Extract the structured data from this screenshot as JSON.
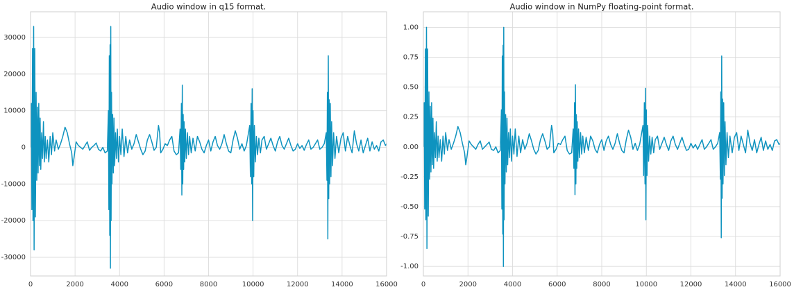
{
  "chart_data": [
    {
      "type": "line",
      "title": "Audio window in q15 format.",
      "color": "#0e93bf",
      "grid": true,
      "xlim": [
        0,
        16000
      ],
      "xticks": [
        0,
        2000,
        4000,
        6000,
        8000,
        10000,
        12000,
        14000,
        16000
      ],
      "ylim": [
        -35100,
        37000
      ],
      "yticks": [
        -30000,
        -20000,
        -10000,
        0,
        10000,
        20000,
        30000
      ],
      "x": [
        0,
        40,
        60,
        90,
        110,
        140,
        160,
        190,
        220,
        250,
        280,
        310,
        340,
        370,
        400,
        430,
        460,
        500,
        540,
        580,
        620,
        660,
        700,
        760,
        820,
        880,
        940,
        1000,
        1080,
        1150,
        1250,
        1350,
        1450,
        1550,
        1650,
        1750,
        1850,
        1900,
        1950,
        2050,
        2150,
        2250,
        2350,
        2450,
        2550,
        2650,
        2750,
        2850,
        2950,
        3050,
        3150,
        3250,
        3350,
        3450,
        3500,
        3520,
        3540,
        3560,
        3575,
        3590,
        3605,
        3620,
        3640,
        3660,
        3690,
        3720,
        3750,
        3780,
        3820,
        3860,
        3900,
        3950,
        4000,
        4060,
        4120,
        4200,
        4280,
        4360,
        4450,
        4550,
        4650,
        4750,
        4850,
        4950,
        5050,
        5150,
        5250,
        5350,
        5450,
        5550,
        5650,
        5750,
        5800,
        5850,
        5950,
        6050,
        6150,
        6250,
        6350,
        6450,
        6550,
        6650,
        6720,
        6750,
        6780,
        6800,
        6820,
        6840,
        6860,
        6880,
        6900,
        6930,
        6960,
        7000,
        7050,
        7100,
        7150,
        7220,
        7300,
        7400,
        7500,
        7600,
        7700,
        7800,
        7900,
        8000,
        8100,
        8200,
        8300,
        8400,
        8500,
        8600,
        8700,
        8800,
        8900,
        9000,
        9100,
        9200,
        9300,
        9400,
        9500,
        9600,
        9700,
        9850,
        9880,
        9910,
        9940,
        9960,
        9980,
        10000,
        10030,
        10060,
        10100,
        10150,
        10200,
        10260,
        10330,
        10400,
        10500,
        10600,
        10700,
        10800,
        10900,
        11000,
        11100,
        11200,
        11300,
        11400,
        11500,
        11600,
        11700,
        11800,
        11900,
        12000,
        12100,
        12200,
        12300,
        12400,
        12500,
        12600,
        12700,
        12800,
        12900,
        13000,
        13100,
        13200,
        13290,
        13320,
        13340,
        13360,
        13380,
        13400,
        13420,
        13440,
        13470,
        13500,
        13530,
        13570,
        13620,
        13680,
        13750,
        13850,
        13950,
        14050,
        14150,
        14250,
        14350,
        14450,
        14550,
        14650,
        14750,
        14850,
        14950,
        15050,
        15150,
        15250,
        15350,
        15450,
        15550,
        15650,
        15750,
        15850,
        15950,
        16000
      ],
      "values": [
        0,
        12000,
        -17000,
        27000,
        -20000,
        33000,
        -28000,
        27000,
        -19000,
        15000,
        -9000,
        11000,
        -7000,
        12000,
        -5000,
        8000,
        -6000,
        4000,
        -3000,
        7000,
        -4000,
        3000,
        -3000,
        2000,
        -4000,
        3000,
        -2000,
        4000,
        -1000,
        2000,
        -500,
        1000,
        3000,
        5500,
        4000,
        1000,
        -1500,
        -5000,
        -3000,
        1500,
        500,
        0,
        -500,
        500,
        1500,
        -800,
        0,
        500,
        1200,
        -500,
        -1000,
        0,
        -1500,
        -1000,
        10000,
        -17000,
        25000,
        -24000,
        28000,
        -33000,
        33000,
        -20000,
        15000,
        -10000,
        9000,
        -7000,
        8000,
        -5000,
        4000,
        -3000,
        5000,
        -4000,
        3000,
        -2000,
        5000,
        -2500,
        3000,
        -1500,
        2000,
        -500,
        1000,
        3500,
        1500,
        -500,
        -2000,
        -1000,
        2000,
        3500,
        1500,
        -800,
        0,
        6000,
        4000,
        -1500,
        -500,
        1000,
        500,
        2000,
        3000,
        -1000,
        -2000,
        -1500,
        5000,
        -6000,
        12000,
        -13000,
        17000,
        -10000,
        9000,
        -6000,
        7000,
        -4000,
        5000,
        -3000,
        4000,
        -2000,
        3000,
        -1500,
        2500,
        -1000,
        3000,
        1500,
        -500,
        -1500,
        500,
        2000,
        -1000,
        1500,
        3000,
        500,
        -500,
        1000,
        3500,
        1000,
        -1000,
        -1500,
        2000,
        4500,
        2500,
        -500,
        1000,
        -1000,
        500,
        6000,
        -8000,
        12000,
        -10000,
        16000,
        -20000,
        10000,
        -8000,
        6000,
        -4000,
        3000,
        -2000,
        2500,
        -1500,
        2000,
        3000,
        -500,
        1000,
        2500,
        500,
        -1000,
        1500,
        3000,
        500,
        -500,
        1000,
        2500,
        500,
        -1000,
        -500,
        1000,
        -300,
        500,
        -800,
        800,
        2000,
        -500,
        0,
        1000,
        2000,
        -500,
        0,
        1000,
        4000,
        -9000,
        15000,
        -25000,
        25000,
        -14000,
        13000,
        -10000,
        12000,
        -8000,
        7000,
        -5000,
        4000,
        -3000,
        3000,
        -1500,
        2500,
        4000,
        -1000,
        3000,
        500,
        -1500,
        4500,
        1000,
        -1000,
        2000,
        -1500,
        500,
        2500,
        -1000,
        1500,
        -500,
        500,
        -1000,
        1500,
        2000,
        500,
        1000
      ]
    },
    {
      "type": "line",
      "title": "Audio window in NumPy floating-point format.",
      "color": "#0e93bf",
      "grid": true,
      "xlim": [
        0,
        16000
      ],
      "xticks": [
        0,
        2000,
        4000,
        6000,
        8000,
        10000,
        12000,
        14000,
        16000
      ],
      "ylim": [
        -1.08,
        1.13
      ],
      "yticks": [
        {
          "value": -1,
          "label": "-1.00"
        },
        {
          "value": -0.75,
          "label": "-0.75"
        },
        {
          "value": -0.5,
          "label": "-0.50"
        },
        {
          "value": -0.25,
          "label": "-0.25"
        },
        {
          "value": 0,
          "label": "0.00"
        },
        {
          "value": 0.25,
          "label": "0.25"
        },
        {
          "value": 0.5,
          "label": "0.50"
        },
        {
          "value": 0.75,
          "label": "0.75"
        },
        {
          "value": 1,
          "label": "1.00"
        }
      ],
      "x": [
        0,
        40,
        60,
        90,
        110,
        140,
        160,
        190,
        220,
        250,
        280,
        310,
        340,
        370,
        400,
        430,
        460,
        500,
        540,
        580,
        620,
        660,
        700,
        760,
        820,
        880,
        940,
        1000,
        1080,
        1150,
        1250,
        1350,
        1450,
        1550,
        1650,
        1750,
        1850,
        1900,
        1950,
        2050,
        2150,
        2250,
        2350,
        2450,
        2550,
        2650,
        2750,
        2850,
        2950,
        3050,
        3150,
        3250,
        3350,
        3450,
        3500,
        3520,
        3540,
        3560,
        3575,
        3590,
        3605,
        3620,
        3640,
        3660,
        3690,
        3720,
        3750,
        3780,
        3820,
        3860,
        3900,
        3950,
        4000,
        4060,
        4120,
        4200,
        4280,
        4360,
        4450,
        4550,
        4650,
        4750,
        4850,
        4950,
        5050,
        5150,
        5250,
        5350,
        5450,
        5550,
        5650,
        5750,
        5800,
        5850,
        5950,
        6050,
        6150,
        6250,
        6350,
        6450,
        6550,
        6650,
        6720,
        6750,
        6780,
        6800,
        6820,
        6840,
        6860,
        6880,
        6900,
        6930,
        6960,
        7000,
        7050,
        7100,
        7150,
        7220,
        7300,
        7400,
        7500,
        7600,
        7700,
        7800,
        7900,
        8000,
        8100,
        8200,
        8300,
        8400,
        8500,
        8600,
        8700,
        8800,
        8900,
        9000,
        9100,
        9200,
        9300,
        9400,
        9500,
        9600,
        9700,
        9850,
        9880,
        9910,
        9940,
        9960,
        9980,
        10000,
        10030,
        10060,
        10100,
        10150,
        10200,
        10260,
        10330,
        10400,
        10500,
        10600,
        10700,
        10800,
        10900,
        11000,
        11100,
        11200,
        11300,
        11400,
        11500,
        11600,
        11700,
        11800,
        11900,
        12000,
        12100,
        12200,
        12300,
        12400,
        12500,
        12600,
        12700,
        12800,
        12900,
        13000,
        13100,
        13200,
        13290,
        13320,
        13340,
        13360,
        13380,
        13400,
        13420,
        13440,
        13470,
        13500,
        13530,
        13570,
        13620,
        13680,
        13750,
        13850,
        13950,
        14050,
        14150,
        14250,
        14350,
        14450,
        14550,
        14650,
        14750,
        14850,
        14950,
        15050,
        15150,
        15250,
        15350,
        15450,
        15550,
        15650,
        15750,
        15850,
        15950,
        16000
      ],
      "values": [
        0,
        0.37,
        -0.52,
        0.82,
        -0.61,
        1.0,
        -0.85,
        0.82,
        -0.58,
        0.46,
        -0.27,
        0.34,
        -0.21,
        0.37,
        -0.15,
        0.24,
        -0.18,
        0.12,
        -0.09,
        0.21,
        -0.12,
        0.09,
        -0.09,
        0.06,
        -0.12,
        0.09,
        -0.06,
        0.12,
        -0.03,
        0.06,
        -0.02,
        0.03,
        0.09,
        0.17,
        0.12,
        0.03,
        -0.05,
        -0.15,
        -0.09,
        0.05,
        0.02,
        0,
        -0.02,
        0.02,
        0.05,
        -0.02,
        0,
        0.02,
        0.04,
        -0.02,
        -0.03,
        0,
        -0.05,
        -0.03,
        0.31,
        -0.52,
        0.76,
        -0.73,
        0.85,
        -1.0,
        1.0,
        -0.61,
        0.46,
        -0.31,
        0.27,
        -0.21,
        0.24,
        -0.15,
        0.12,
        -0.09,
        0.15,
        -0.12,
        0.09,
        -0.06,
        0.15,
        -0.08,
        0.09,
        -0.05,
        0.06,
        -0.02,
        0.03,
        0.11,
        0.05,
        -0.02,
        -0.06,
        -0.03,
        0.06,
        0.11,
        0.05,
        -0.02,
        0,
        0.18,
        0.12,
        -0.05,
        -0.02,
        0.03,
        0.02,
        0.06,
        0.09,
        -0.03,
        -0.06,
        -0.05,
        0.15,
        -0.18,
        0.37,
        -0.4,
        0.52,
        -0.31,
        0.27,
        -0.18,
        0.21,
        -0.12,
        0.15,
        -0.09,
        0.12,
        -0.06,
        0.09,
        -0.05,
        0.08,
        -0.03,
        0.09,
        0.05,
        -0.02,
        -0.05,
        0.02,
        0.06,
        -0.03,
        0.05,
        0.09,
        0.02,
        -0.02,
        0.03,
        0.11,
        0.03,
        -0.03,
        -0.05,
        0.06,
        0.14,
        0.08,
        -0.02,
        0.03,
        -0.03,
        0.02,
        0.18,
        -0.24,
        0.37,
        -0.31,
        0.49,
        -0.61,
        0.31,
        -0.24,
        0.18,
        -0.12,
        0.09,
        -0.06,
        0.08,
        -0.05,
        0.06,
        0.09,
        -0.02,
        0.03,
        0.08,
        0.02,
        -0.03,
        0.05,
        0.09,
        0.02,
        -0.02,
        0.03,
        0.08,
        0.02,
        -0.03,
        -0.02,
        0.03,
        -0.01,
        0.02,
        -0.02,
        0.02,
        0.06,
        -0.02,
        0,
        0.03,
        0.06,
        -0.02,
        0,
        0.03,
        0.12,
        -0.27,
        0.46,
        -0.76,
        0.76,
        -0.43,
        0.4,
        -0.31,
        0.37,
        -0.24,
        0.21,
        -0.15,
        0.12,
        -0.09,
        0.09,
        -0.05,
        0.08,
        0.12,
        -0.03,
        0.09,
        0.02,
        -0.05,
        0.14,
        0.03,
        -0.03,
        0.06,
        -0.05,
        0.02,
        0.08,
        -0.03,
        0.05,
        -0.02,
        0.02,
        -0.03,
        0.05,
        0.06,
        0.02,
        0.03
      ]
    }
  ]
}
